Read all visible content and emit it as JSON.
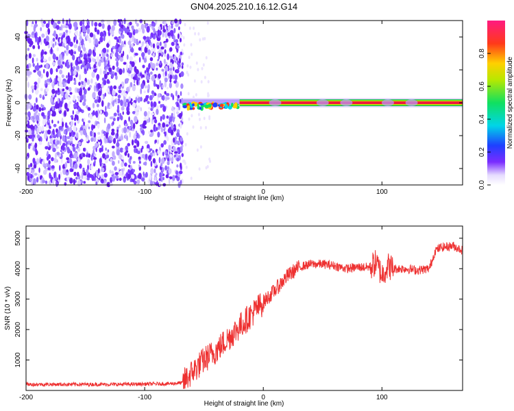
{
  "title": "GN04.2025.210.16.12.G14",
  "chart_data": [
    {
      "type": "heatmap",
      "xlabel": "Height of straight line (km)",
      "ylabel": "Frequency (Hz)",
      "xlim": [
        -200,
        168
      ],
      "ylim": [
        -50,
        50
      ],
      "xticks": [
        -200,
        -100,
        0,
        100
      ],
      "yticks": [
        -40,
        -20,
        0,
        20,
        40
      ],
      "colorbar": {
        "label": "Normalized spectral amplitude",
        "ticks": [
          0.0,
          0.2,
          0.4,
          0.6,
          0.8
        ],
        "range": [
          0,
          1
        ]
      },
      "regions": [
        {
          "name": "noise",
          "x_range": [
            -200,
            -68
          ],
          "freq_range": [
            -50,
            50
          ],
          "amplitude_approx": 0.1
        },
        {
          "name": "transition",
          "x_range": [
            -68,
            -20
          ],
          "freq_center": -2,
          "amplitude_approx": 0.5
        },
        {
          "name": "signal line",
          "x_range": [
            -5,
            168
          ],
          "freq_center": 0,
          "amplitude_approx": 1.0
        }
      ]
    },
    {
      "type": "line",
      "xlabel": "Height of straight line (km)",
      "ylabel": "SNR (10 * v/v)",
      "xlim": [
        -200,
        168
      ],
      "ylim": [
        0,
        5400
      ],
      "xticks": [
        -200,
        -100,
        0,
        100
      ],
      "yticks": [
        1000,
        2000,
        3000,
        4000,
        5000
      ],
      "color": "#ee3030",
      "series": [
        {
          "x": [
            -200,
            -160,
            -120,
            -80,
            -68,
            -60,
            -50,
            -40,
            -30,
            -20,
            -10,
            0,
            10,
            20,
            30,
            40,
            50,
            60,
            70,
            80,
            90,
            95,
            100,
            105,
            110,
            120,
            130,
            140,
            145,
            150,
            160,
            168
          ],
          "y": [
            200,
            200,
            200,
            220,
            250,
            600,
            1000,
            1300,
            1700,
            2100,
            2500,
            2900,
            3300,
            3750,
            4050,
            4150,
            4150,
            4100,
            4000,
            4050,
            4050,
            4200,
            3800,
            4100,
            4000,
            4000,
            3950,
            4000,
            4600,
            4700,
            4750,
            4600
          ]
        }
      ]
    }
  ]
}
